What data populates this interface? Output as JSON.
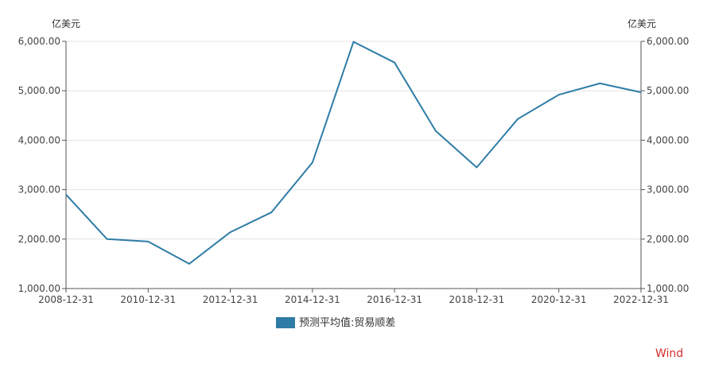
{
  "chart_data": {
    "type": "line",
    "x": [
      "2008-12-31",
      "2009-12-31",
      "2010-12-31",
      "2011-12-31",
      "2012-12-31",
      "2013-12-31",
      "2014-12-31",
      "2015-12-31",
      "2016-12-31",
      "2017-12-31",
      "2018-12-31",
      "2019-12-31",
      "2020-12-31",
      "2021-12-31",
      "2022-12-31"
    ],
    "x_tick_labels": [
      "2008-12-31",
      "2010-12-31",
      "2012-12-31",
      "2014-12-31",
      "2016-12-31",
      "2018-12-31",
      "2020-12-31",
      "2022-12-31"
    ],
    "series": [
      {
        "name": "预测平均值:贸易顺差",
        "color": "#2e7ca6",
        "values": [
          2900,
          2000,
          1950,
          1500,
          2140,
          2540,
          3550,
          5990,
          5570,
          4190,
          3450,
          4430,
          4920,
          5150,
          4970
        ]
      }
    ],
    "ylim": [
      1000,
      6000
    ],
    "y_ticks": [
      "1,000.00",
      "2,000.00",
      "3,000.00",
      "4,000.00",
      "5,000.00",
      "6,000.00"
    ],
    "ylabel_left": "亿美元",
    "ylabel_right": "亿美元",
    "grid": true,
    "legend_position": "bottom-center"
  },
  "watermark": {
    "text": "Wind",
    "color": "#d32f2f"
  }
}
